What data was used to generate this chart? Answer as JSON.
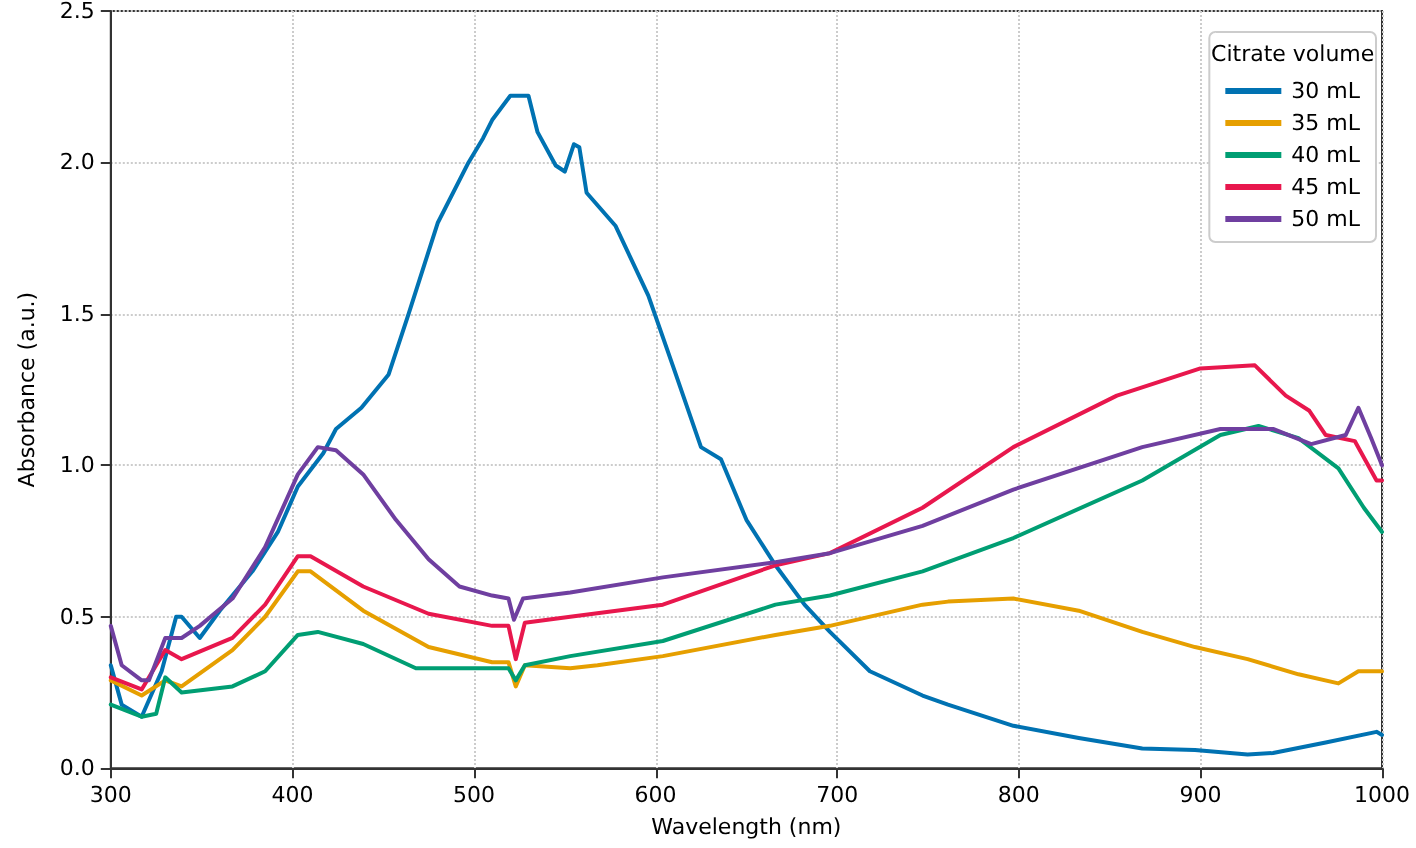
{
  "chart_data": {
    "type": "line",
    "xlabel": "Wavelength (nm)",
    "ylabel": "Absorbance (a.u.)",
    "legend_title": "Citrate volume",
    "legend": "top right",
    "grid": true,
    "line_style": "solid",
    "marker": "none",
    "xlim": [
      300,
      1000
    ],
    "xticks": [
      300,
      400,
      500,
      600,
      700,
      800,
      900,
      1000
    ],
    "ylim": [
      0,
      2.5
    ],
    "yticks": [
      {
        "value": 0,
        "label": "0.0"
      },
      {
        "value": 0.5,
        "label": "0.5"
      },
      {
        "value": 1,
        "label": "1.0"
      },
      {
        "value": 1.5,
        "label": "1.5"
      },
      {
        "value": 2,
        "label": "2.0"
      },
      {
        "value": 2.5,
        "label": "2.5"
      }
    ],
    "series": [
      {
        "name": "30 mL",
        "color": "#0072b2",
        "x": [
          300,
          306,
          317,
          328,
          336,
          339,
          349,
          360,
          378,
          392,
          403,
          417,
          424,
          438,
          453,
          464,
          480,
          497,
          505,
          510,
          520,
          530,
          535,
          545,
          550,
          555,
          558,
          562,
          578,
          596,
          610,
          625,
          636,
          650,
          666,
          682,
          696,
          718,
          747,
          761,
          797,
          833,
          868,
          897,
          926,
          940,
          969,
          997,
          1000
        ],
        "values": [
          0.34,
          0.21,
          0.17,
          0.32,
          0.5,
          0.5,
          0.43,
          0.52,
          0.65,
          0.78,
          0.93,
          1.04,
          1.12,
          1.19,
          1.3,
          1.5,
          1.8,
          2.0,
          2.08,
          2.14,
          2.22,
          2.22,
          2.1,
          1.99,
          1.97,
          2.06,
          2.05,
          1.9,
          1.79,
          1.56,
          1.32,
          1.06,
          1.02,
          0.82,
          0.67,
          0.54,
          0.45,
          0.32,
          0.24,
          0.21,
          0.14,
          0.1,
          0.065,
          0.06,
          0.045,
          0.05,
          0.085,
          0.12,
          0.11
        ]
      },
      {
        "name": "35 mL",
        "color": "#e69f00",
        "x": [
          300,
          317,
          330,
          339,
          367,
          385,
          403,
          410,
          439,
          475,
          510,
          519,
          523,
          528,
          553,
          568,
          604,
          666,
          696,
          747,
          761,
          797,
          833,
          868,
          897,
          926,
          954,
          976,
          987,
          1000
        ],
        "values": [
          0.29,
          0.24,
          0.29,
          0.27,
          0.39,
          0.5,
          0.65,
          0.65,
          0.52,
          0.4,
          0.35,
          0.35,
          0.27,
          0.34,
          0.33,
          0.34,
          0.37,
          0.44,
          0.47,
          0.54,
          0.55,
          0.56,
          0.52,
          0.45,
          0.4,
          0.36,
          0.31,
          0.28,
          0.32,
          0.32
        ]
      },
      {
        "name": "40 mL",
        "color": "#009e73",
        "x": [
          300,
          317,
          325,
          330,
          339,
          367,
          385,
          403,
          414,
          439,
          468,
          492,
          519,
          523,
          528,
          553,
          604,
          666,
          696,
          747,
          797,
          868,
          911,
          932,
          954,
          976,
          990,
          1000
        ],
        "values": [
          0.21,
          0.17,
          0.18,
          0.3,
          0.25,
          0.27,
          0.32,
          0.44,
          0.45,
          0.41,
          0.33,
          0.33,
          0.33,
          0.29,
          0.34,
          0.37,
          0.42,
          0.54,
          0.57,
          0.65,
          0.76,
          0.95,
          1.1,
          1.13,
          1.09,
          0.99,
          0.86,
          0.78
        ]
      },
      {
        "name": "45 mL",
        "color": "#e8174d",
        "x": [
          300,
          317,
          330,
          339,
          367,
          385,
          403,
          410,
          439,
          475,
          510,
          519,
          523,
          528,
          553,
          604,
          666,
          696,
          747,
          797,
          854,
          900,
          930,
          947,
          960,
          969,
          985,
          997,
          1000
        ],
        "values": [
          0.3,
          0.26,
          0.39,
          0.36,
          0.43,
          0.54,
          0.7,
          0.7,
          0.6,
          0.51,
          0.47,
          0.47,
          0.36,
          0.48,
          0.5,
          0.54,
          0.67,
          0.71,
          0.86,
          1.06,
          1.23,
          1.32,
          1.33,
          1.23,
          1.18,
          1.1,
          1.08,
          0.95,
          0.95
        ]
      },
      {
        "name": "50 mL",
        "color": "#6f3fa0",
        "x": [
          300,
          306,
          317,
          321,
          330,
          339,
          349,
          367,
          385,
          403,
          414,
          424,
          439,
          457,
          475,
          492,
          510,
          519,
          522,
          527,
          553,
          604,
          666,
          696,
          747,
          797,
          868,
          911,
          940,
          961,
          980,
          987,
          994,
          1000
        ],
        "values": [
          0.47,
          0.34,
          0.29,
          0.29,
          0.43,
          0.43,
          0.47,
          0.56,
          0.73,
          0.97,
          1.06,
          1.05,
          0.97,
          0.82,
          0.69,
          0.6,
          0.57,
          0.56,
          0.49,
          0.56,
          0.58,
          0.63,
          0.68,
          0.71,
          0.8,
          0.92,
          1.06,
          1.12,
          1.12,
          1.07,
          1.1,
          1.19,
          1.09,
          1.0
        ]
      }
    ]
  }
}
